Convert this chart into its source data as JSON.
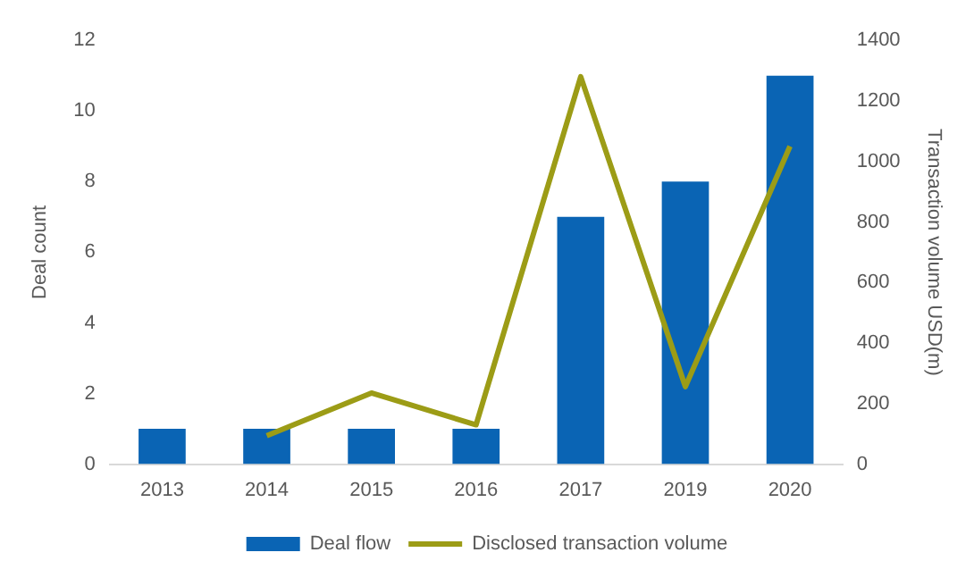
{
  "chart_data": {
    "type": "bar",
    "categories": [
      "2013",
      "2014",
      "2015",
      "2016",
      "2017",
      "2019",
      "2020"
    ],
    "series": [
      {
        "name": "Deal flow",
        "color": "#0a64b4",
        "values": [
          1,
          1,
          1,
          1,
          7,
          8,
          11
        ]
      },
      {
        "name": "Disclosed transaction volume",
        "type": "line",
        "axis": "y2",
        "color": "#9c9c16",
        "values": [
          null,
          94,
          235,
          130,
          1280,
          256,
          1050
        ]
      }
    ],
    "ylabel": "Deal count",
    "y2label": "Transaction volume USD(m)",
    "ylim": [
      0,
      12
    ],
    "yticks": [
      0,
      2,
      4,
      6,
      8,
      10,
      12
    ],
    "y2lim": [
      0,
      1400
    ],
    "y2ticks": [
      0,
      200,
      400,
      600,
      800,
      1000,
      1200,
      1400
    ],
    "grid": false,
    "legend": "bottom",
    "marker": "none",
    "line_style": "solid"
  }
}
